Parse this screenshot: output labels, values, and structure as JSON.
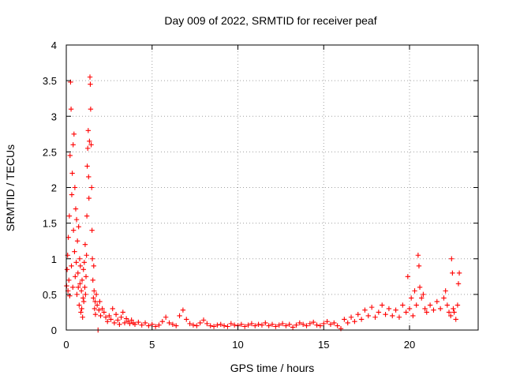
{
  "chart_data": {
    "type": "scatter",
    "title": "Day 009 of 2022, SRMTID for receiver peaf",
    "xlabel": "GPS time / hours",
    "ylabel": "SRMTID / TECUs",
    "xlim": [
      0,
      24
    ],
    "ylim": [
      0,
      4
    ],
    "xticks": [
      "0",
      "5",
      "10",
      "15",
      "20"
    ],
    "yticks": [
      "0",
      "0.5",
      "1",
      "1.5",
      "2",
      "2.5",
      "3",
      "3.5",
      "4"
    ],
    "grid": true,
    "marker": "+",
    "color": "#ff0000",
    "series": [
      {
        "name": "SRMTID",
        "points": [
          [
            0.02,
            0.62
          ],
          [
            0.05,
            0.85
          ],
          [
            0.08,
            1.05
          ],
          [
            0.1,
            0.55
          ],
          [
            0.12,
            1.3
          ],
          [
            0.15,
            0.7
          ],
          [
            0.18,
            1.6
          ],
          [
            0.2,
            0.48
          ],
          [
            0.22,
            2.45
          ],
          [
            0.25,
            3.48
          ],
          [
            0.28,
            3.1
          ],
          [
            0.3,
            0.9
          ],
          [
            0.32,
            1.9
          ],
          [
            0.35,
            2.2
          ],
          [
            0.38,
            0.6
          ],
          [
            0.4,
            2.6
          ],
          [
            0.42,
            1.4
          ],
          [
            0.45,
            2.75
          ],
          [
            0.48,
            1.1
          ],
          [
            0.5,
            2.0
          ],
          [
            0.52,
            0.75
          ],
          [
            0.55,
            1.7
          ],
          [
            0.58,
            0.95
          ],
          [
            0.6,
            1.55
          ],
          [
            0.62,
            0.5
          ],
          [
            0.65,
            1.25
          ],
          [
            0.68,
            0.8
          ],
          [
            0.7,
            0.6
          ],
          [
            0.72,
            1.45
          ],
          [
            0.75,
            0.35
          ],
          [
            0.78,
            1.0
          ],
          [
            0.8,
            0.65
          ],
          [
            0.82,
            0.9
          ],
          [
            0.85,
            0.25
          ],
          [
            0.88,
            0.55
          ],
          [
            0.9,
            0.3
          ],
          [
            0.92,
            0.7
          ],
          [
            0.95,
            0.18
          ],
          [
            0.98,
            0.45
          ],
          [
            1.0,
            0.85
          ],
          [
            1.02,
            0.4
          ],
          [
            1.05,
            0.95
          ],
          [
            1.08,
            0.6
          ],
          [
            1.1,
            1.2
          ],
          [
            1.12,
            0.5
          ],
          [
            1.15,
            0.75
          ],
          [
            1.18,
            1.05
          ],
          [
            1.2,
            1.6
          ],
          [
            1.22,
            2.3
          ],
          [
            1.25,
            2.55
          ],
          [
            1.28,
            2.8
          ],
          [
            1.3,
            2.15
          ],
          [
            1.32,
            1.85
          ],
          [
            1.35,
            2.65
          ],
          [
            1.38,
            3.55
          ],
          [
            1.4,
            3.45
          ],
          [
            1.42,
            3.1
          ],
          [
            1.45,
            2.6
          ],
          [
            1.48,
            2.0
          ],
          [
            1.5,
            1.4
          ],
          [
            1.52,
            1.0
          ],
          [
            1.55,
            0.7
          ],
          [
            1.58,
            0.45
          ],
          [
            1.6,
            0.9
          ],
          [
            1.62,
            0.55
          ],
          [
            1.65,
            0.3
          ],
          [
            1.68,
            0.4
          ],
          [
            1.7,
            0.22
          ],
          [
            1.75,
            0.5
          ],
          [
            1.8,
            0.35
          ],
          [
            1.85,
            0.0
          ],
          [
            1.9,
            0.28
          ],
          [
            1.95,
            0.4
          ],
          [
            2.0,
            0.2
          ],
          [
            2.1,
            0.3
          ],
          [
            2.2,
            0.25
          ],
          [
            2.3,
            0.18
          ],
          [
            2.4,
            0.12
          ],
          [
            2.5,
            0.2
          ],
          [
            2.6,
            0.15
          ],
          [
            2.7,
            0.3
          ],
          [
            2.8,
            0.1
          ],
          [
            2.9,
            0.22
          ],
          [
            3.0,
            0.14
          ],
          [
            3.1,
            0.08
          ],
          [
            3.2,
            0.18
          ],
          [
            3.3,
            0.25
          ],
          [
            3.4,
            0.1
          ],
          [
            3.5,
            0.16
          ],
          [
            3.6,
            0.12
          ],
          [
            3.7,
            0.09
          ],
          [
            3.8,
            0.14
          ],
          [
            3.9,
            0.1
          ],
          [
            4.0,
            0.08
          ],
          [
            4.2,
            0.11
          ],
          [
            4.4,
            0.07
          ],
          [
            4.6,
            0.1
          ],
          [
            4.8,
            0.06
          ],
          [
            5.0,
            0.08
          ],
          [
            5.2,
            0.05
          ],
          [
            5.4,
            0.07
          ],
          [
            5.6,
            0.12
          ],
          [
            5.8,
            0.18
          ],
          [
            6.0,
            0.1
          ],
          [
            6.2,
            0.08
          ],
          [
            6.4,
            0.06
          ],
          [
            6.6,
            0.2
          ],
          [
            6.8,
            0.28
          ],
          [
            7.0,
            0.15
          ],
          [
            7.2,
            0.09
          ],
          [
            7.4,
            0.07
          ],
          [
            7.6,
            0.06
          ],
          [
            7.8,
            0.1
          ],
          [
            8.0,
            0.14
          ],
          [
            8.2,
            0.09
          ],
          [
            8.4,
            0.06
          ],
          [
            8.6,
            0.05
          ],
          [
            8.8,
            0.07
          ],
          [
            9.0,
            0.08
          ],
          [
            9.2,
            0.06
          ],
          [
            9.4,
            0.05
          ],
          [
            9.6,
            0.09
          ],
          [
            9.8,
            0.07
          ],
          [
            10.0,
            0.06
          ],
          [
            10.2,
            0.08
          ],
          [
            10.4,
            0.05
          ],
          [
            10.6,
            0.07
          ],
          [
            10.8,
            0.09
          ],
          [
            11.0,
            0.06
          ],
          [
            11.2,
            0.08
          ],
          [
            11.4,
            0.07
          ],
          [
            11.6,
            0.1
          ],
          [
            11.8,
            0.06
          ],
          [
            12.0,
            0.08
          ],
          [
            12.2,
            0.05
          ],
          [
            12.4,
            0.07
          ],
          [
            12.6,
            0.09
          ],
          [
            12.8,
            0.06
          ],
          [
            13.0,
            0.08
          ],
          [
            13.2,
            0.04
          ],
          [
            13.4,
            0.07
          ],
          [
            13.6,
            0.1
          ],
          [
            13.8,
            0.08
          ],
          [
            14.0,
            0.06
          ],
          [
            14.2,
            0.09
          ],
          [
            14.4,
            0.11
          ],
          [
            14.6,
            0.07
          ],
          [
            14.8,
            0.06
          ],
          [
            15.0,
            0.09
          ],
          [
            15.2,
            0.12
          ],
          [
            15.4,
            0.08
          ],
          [
            15.6,
            0.1
          ],
          [
            15.8,
            0.06
          ],
          [
            16.0,
            0.02
          ],
          [
            16.2,
            0.15
          ],
          [
            16.4,
            0.1
          ],
          [
            16.6,
            0.18
          ],
          [
            16.8,
            0.12
          ],
          [
            17.0,
            0.22
          ],
          [
            17.2,
            0.15
          ],
          [
            17.4,
            0.28
          ],
          [
            17.6,
            0.2
          ],
          [
            17.8,
            0.32
          ],
          [
            18.0,
            0.18
          ],
          [
            18.2,
            0.25
          ],
          [
            18.4,
            0.35
          ],
          [
            18.6,
            0.22
          ],
          [
            18.8,
            0.3
          ],
          [
            19.0,
            0.2
          ],
          [
            19.2,
            0.28
          ],
          [
            19.4,
            0.18
          ],
          [
            19.6,
            0.35
          ],
          [
            19.8,
            0.25
          ],
          [
            19.9,
            0.75
          ],
          [
            20.0,
            0.3
          ],
          [
            20.1,
            0.45
          ],
          [
            20.2,
            0.2
          ],
          [
            20.3,
            0.55
          ],
          [
            20.4,
            0.35
          ],
          [
            20.5,
            1.05
          ],
          [
            20.55,
            0.9
          ],
          [
            20.6,
            0.6
          ],
          [
            20.7,
            0.45
          ],
          [
            20.8,
            0.5
          ],
          [
            20.9,
            0.3
          ],
          [
            21.0,
            0.25
          ],
          [
            21.2,
            0.35
          ],
          [
            21.4,
            0.28
          ],
          [
            21.6,
            0.4
          ],
          [
            21.8,
            0.3
          ],
          [
            22.0,
            0.45
          ],
          [
            22.1,
            0.55
          ],
          [
            22.2,
            0.35
          ],
          [
            22.3,
            0.25
          ],
          [
            22.4,
            0.2
          ],
          [
            22.45,
            1.0
          ],
          [
            22.5,
            0.8
          ],
          [
            22.55,
            0.3
          ],
          [
            22.6,
            0.25
          ],
          [
            22.7,
            0.15
          ],
          [
            22.8,
            0.35
          ],
          [
            22.85,
            0.65
          ],
          [
            22.9,
            0.8
          ]
        ]
      }
    ]
  }
}
